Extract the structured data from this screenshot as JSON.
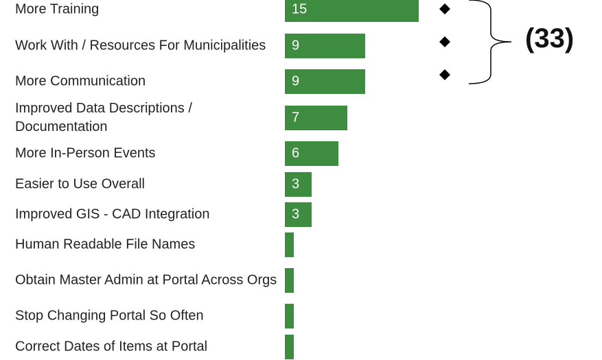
{
  "chart_data": {
    "type": "bar",
    "orientation": "horizontal",
    "categories": [
      "More Training",
      "Work With / Resources For Municipalities",
      "More Communication",
      "Improved Data Descriptions / Documentation",
      "More In-Person Events",
      "Easier to Use Overall",
      "Improved GIS - CAD Integration",
      "Human Readable File Names",
      "Obtain Master Admin at Portal Across Orgs",
      "Stop Changing Portal So Often",
      "Correct Dates of Items at Portal"
    ],
    "values": [
      15,
      9,
      9,
      7,
      6,
      3,
      3,
      1,
      1,
      1,
      1
    ],
    "color": "#3d8c40",
    "annotation": "(33)"
  }
}
